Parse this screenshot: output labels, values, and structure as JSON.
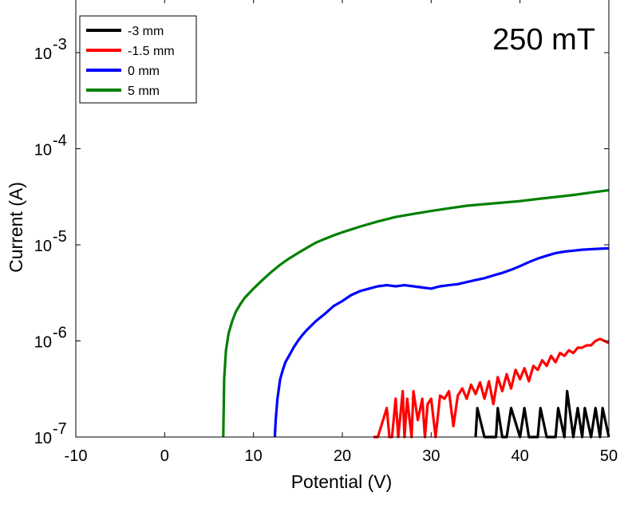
{
  "chart_data": {
    "type": "line",
    "xlabel": "Potential (V)",
    "ylabel": "Current (A)",
    "xlim": [
      -10,
      50
    ],
    "ylim": [
      1e-07,
      0.003
    ],
    "yscale": "log",
    "xticks": [
      "-10",
      "0",
      "10",
      "20",
      "30",
      "40",
      "50"
    ],
    "yticks": [
      {
        "base": "10",
        "exp": "-7"
      },
      {
        "base": "10",
        "exp": "-6"
      },
      {
        "base": "10",
        "exp": "-5"
      },
      {
        "base": "10",
        "exp": "-4"
      },
      {
        "base": "10",
        "exp": "-3"
      }
    ],
    "annotation": "250 mT",
    "legend_position": "top-left",
    "grid": false,
    "series": [
      {
        "name": "-3 mm",
        "color": "#000000",
        "x": [
          35,
          35.2,
          36,
          37.3,
          37.5,
          38,
          38.5,
          39,
          40,
          40.5,
          41,
          42,
          42.3,
          43,
          44,
          44.3,
          45,
          45.3,
          46,
          46.5,
          47,
          47.3,
          48,
          48.5,
          49,
          49.3,
          50
        ],
        "y": [
          1e-07,
          2e-07,
          1e-07,
          1e-07,
          2e-07,
          1e-07,
          1e-07,
          2e-07,
          1e-07,
          2e-07,
          1e-07,
          1e-07,
          2e-07,
          1e-07,
          1e-07,
          2e-07,
          1e-07,
          3e-07,
          1e-07,
          2e-07,
          1e-07,
          2e-07,
          1e-07,
          2e-07,
          1e-07,
          2e-07,
          1e-07
        ]
      },
      {
        "name": "-1.5 mm",
        "color": "#ff0000",
        "x": [
          23.5,
          23.8,
          24,
          25,
          25.3,
          25.6,
          26,
          26.3,
          26.8,
          27,
          27.3,
          27.8,
          28,
          28.5,
          29,
          29.3,
          29.6,
          30,
          30.5,
          31,
          31.5,
          32,
          32.5,
          33,
          33.5,
          34,
          34.5,
          35,
          35.5,
          36,
          36.5,
          37,
          37.5,
          38,
          38.5,
          39,
          39.5,
          40,
          40.5,
          41,
          41.5,
          42,
          42.5,
          43,
          43.5,
          44,
          44.5,
          45,
          45.5,
          46,
          46.5,
          47,
          47.5,
          48,
          48.5,
          49,
          49.5,
          50
        ],
        "y": [
          1e-07,
          1e-07,
          1e-07,
          2e-07,
          1e-07,
          1e-07,
          2.5e-07,
          1e-07,
          3e-07,
          1e-07,
          2.5e-07,
          1e-07,
          3e-07,
          1.5e-07,
          2.5e-07,
          1e-07,
          2.2e-07,
          2.5e-07,
          1e-07,
          2.7e-07,
          2.5e-07,
          3e-07,
          1.3e-07,
          2.7e-07,
          3.2e-07,
          2.5e-07,
          3.5e-07,
          2.8e-07,
          3.7e-07,
          2.5e-07,
          3.8e-07,
          2.2e-07,
          4.2e-07,
          3e-07,
          4.5e-07,
          3.2e-07,
          5e-07,
          4e-07,
          5.2e-07,
          3.8e-07,
          5.5e-07,
          5e-07,
          6.3e-07,
          5.5e-07,
          7e-07,
          6e-07,
          7.5e-07,
          7e-07,
          8e-07,
          7.5e-07,
          8.5e-07,
          8.5e-07,
          9e-07,
          9e-07,
          1e-06,
          1.05e-06,
          1e-06,
          9.5e-07
        ]
      },
      {
        "name": "0 mm",
        "color": "#0000ff",
        "x": [
          12.4,
          12.5,
          12.7,
          13,
          13.3,
          13.6,
          14,
          14.5,
          15,
          15.5,
          16,
          17,
          18,
          19,
          20,
          21,
          22,
          23,
          24,
          25,
          26,
          27,
          28,
          29,
          30,
          31,
          32,
          33,
          34,
          35,
          36,
          37,
          38,
          39,
          40,
          41,
          42,
          43,
          44,
          45,
          46,
          47,
          48,
          49,
          50
        ],
        "y": [
          1e-07,
          1.5e-07,
          2.5e-07,
          4e-07,
          5e-07,
          6e-07,
          7e-07,
          8.5e-07,
          1e-06,
          1.15e-06,
          1.3e-06,
          1.6e-06,
          1.9e-06,
          2.3e-06,
          2.6e-06,
          3e-06,
          3.3e-06,
          3.5e-06,
          3.7e-06,
          3.8e-06,
          3.7e-06,
          3.8e-06,
          3.7e-06,
          3.6e-06,
          3.5e-06,
          3.7e-06,
          3.8e-06,
          3.9e-06,
          4.1e-06,
          4.3e-06,
          4.5e-06,
          4.8e-06,
          5.1e-06,
          5.5e-06,
          6e-06,
          6.6e-06,
          7.2e-06,
          7.7e-06,
          8.2e-06,
          8.5e-06,
          8.7e-06,
          8.9e-06,
          9e-06,
          9.1e-06,
          9.2e-06
        ]
      },
      {
        "name": "5 mm",
        "color": "#008000",
        "x": [
          6.6,
          6.7,
          6.9,
          7.2,
          7.6,
          8,
          8.5,
          9,
          10,
          11,
          12,
          13,
          14,
          15,
          16,
          17,
          18,
          19,
          20,
          22,
          24,
          26,
          28,
          30,
          32,
          34,
          36,
          38,
          40,
          42,
          44,
          46,
          48,
          50
        ],
        "y": [
          1e-07,
          4e-07,
          8e-07,
          1.2e-06,
          1.6e-06,
          2e-06,
          2.4e-06,
          2.8e-06,
          3.5e-06,
          4.3e-06,
          5.2e-06,
          6.2e-06,
          7.2e-06,
          8.2e-06,
          9.3e-06,
          1.05e-05,
          1.15e-05,
          1.25e-05,
          1.35e-05,
          1.55e-05,
          1.75e-05,
          1.95e-05,
          2.1e-05,
          2.25e-05,
          2.4e-05,
          2.55e-05,
          2.65e-05,
          2.75e-05,
          2.85e-05,
          3e-05,
          3.15e-05,
          3.3e-05,
          3.5e-05,
          3.7e-05
        ]
      }
    ]
  }
}
